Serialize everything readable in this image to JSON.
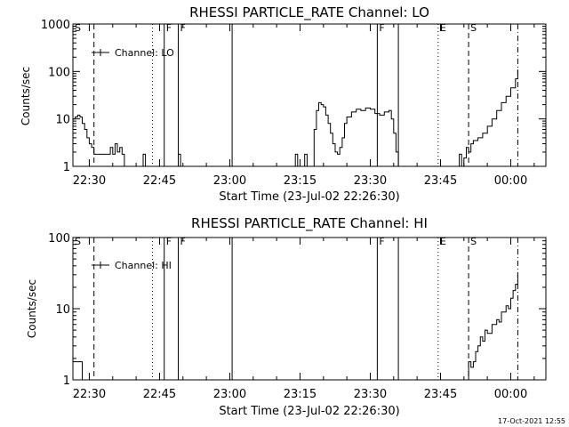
{
  "timestamp": "17-Oct-2021 12:55",
  "colors": {
    "background": "#ffffff",
    "foreground": "#000000"
  },
  "chart_data": [
    {
      "type": "line",
      "title": "RHESSI PARTICLE_RATE Channel: LO",
      "xlabel": "Start Time (23-Jul-02 22:26:30)",
      "ylabel": "Counts/sec",
      "yscale": "log",
      "ylim": [
        1,
        1000
      ],
      "xlim": [
        "22:26:30",
        "00:07:30"
      ],
      "x_ticks": [
        "22:30",
        "22:45",
        "23:00",
        "23:15",
        "23:30",
        "23:45",
        "00:00"
      ],
      "y_ticks": [
        "1",
        "10",
        "100",
        "1000"
      ],
      "legend": {
        "entries": [
          "Channel: LO"
        ],
        "placement": "top-left"
      },
      "grid": false,
      "markers": [
        {
          "label": "S",
          "time": "22:26:30",
          "style": "dash-dot"
        },
        {
          "label": "",
          "time": "22:31:00",
          "style": "dashed"
        },
        {
          "label": "",
          "time": "22:43:30",
          "style": "dotted"
        },
        {
          "label": "F",
          "time": "22:46:00",
          "style": "solid"
        },
        {
          "label": "F",
          "time": "22:49:00",
          "style": "solid"
        },
        {
          "label": "",
          "time": "23:00:30",
          "style": "solid"
        },
        {
          "label": "F",
          "time": "23:31:30",
          "style": "solid"
        },
        {
          "label": "",
          "time": "23:36:00",
          "style": "solid"
        },
        {
          "label": "E",
          "time": "23:44:30",
          "style": "dotted"
        },
        {
          "label": "S",
          "time": "23:51:00",
          "style": "dashed"
        },
        {
          "label": "",
          "time": "00:01:30",
          "style": "dash-dot"
        }
      ],
      "series": [
        {
          "name": "Channel: LO",
          "segments": [
            [
              [
                "22:26:30",
                10
              ],
              [
                "22:27:00",
                11
              ],
              [
                "22:27:30",
                12
              ],
              [
                "22:28:00",
                11
              ],
              [
                "22:28:30",
                8
              ],
              [
                "22:29:00",
                6
              ],
              [
                "22:29:30",
                4
              ],
              [
                "22:30:00",
                3
              ],
              [
                "22:30:30",
                2.5
              ],
              [
                "22:31:00",
                1.8
              ],
              [
                "22:32:00",
                1.8
              ],
              [
                "22:33:00",
                1.8
              ],
              [
                "22:34:00",
                1.8
              ],
              [
                "22:34:30",
                2.5
              ],
              [
                "22:35:00",
                1.8
              ],
              [
                "22:35:30",
                3
              ],
              [
                "22:36:00",
                2
              ],
              [
                "22:36:30",
                2.5
              ],
              [
                "22:37:00",
                1.8
              ],
              [
                "22:37:30",
                1
              ]
            ],
            [
              [
                "22:41:00",
                1
              ],
              [
                "22:41:30",
                1.8
              ],
              [
                "22:42:00",
                1
              ]
            ],
            [
              [
                "22:48:30",
                1
              ],
              [
                "22:49:00",
                1.8
              ],
              [
                "22:49:30",
                1
              ]
            ],
            [
              [
                "23:13:30",
                1
              ],
              [
                "23:14:00",
                1.8
              ],
              [
                "23:14:30",
                1
              ]
            ],
            [
              [
                "23:15:30",
                1
              ],
              [
                "23:16:00",
                1.8
              ],
              [
                "23:16:30",
                1
              ]
            ],
            [
              [
                "23:17:30",
                1
              ],
              [
                "23:18:00",
                6
              ],
              [
                "23:18:30",
                15
              ],
              [
                "23:19:00",
                22
              ],
              [
                "23:19:30",
                20
              ],
              [
                "23:20:00",
                18
              ],
              [
                "23:20:30",
                12
              ],
              [
                "23:21:00",
                8
              ],
              [
                "23:21:30",
                5
              ],
              [
                "23:22:00",
                3
              ],
              [
                "23:22:30",
                2
              ],
              [
                "23:23:00",
                1.8
              ],
              [
                "23:23:30",
                2.5
              ],
              [
                "23:24:00",
                4
              ],
              [
                "23:24:30",
                8
              ],
              [
                "23:25:00",
                11
              ],
              [
                "23:26:00",
                14
              ],
              [
                "23:27:00",
                16
              ],
              [
                "23:28:00",
                15
              ],
              [
                "23:29:00",
                17
              ],
              [
                "23:30:00",
                16
              ],
              [
                "23:31:00",
                13
              ],
              [
                "23:32:00",
                12
              ],
              [
                "23:33:00",
                14
              ],
              [
                "23:34:00",
                15
              ],
              [
                "23:34:30",
                10
              ],
              [
                "23:35:00",
                5
              ],
              [
                "23:35:30",
                2
              ],
              [
                "23:36:00",
                1
              ]
            ],
            [
              [
                "23:48:30",
                1
              ],
              [
                "23:49:00",
                1.8
              ],
              [
                "23:49:30",
                1
              ],
              [
                "23:50:00",
                1.5
              ],
              [
                "23:50:30",
                2.5
              ],
              [
                "23:51:00",
                2
              ],
              [
                "23:51:30",
                3
              ],
              [
                "23:52:00",
                3.5
              ],
              [
                "23:53:00",
                4
              ],
              [
                "23:54:00",
                5
              ],
              [
                "23:55:00",
                7
              ],
              [
                "23:56:00",
                10
              ],
              [
                "23:57:00",
                15
              ],
              [
                "23:58:00",
                22
              ],
              [
                "23:59:00",
                30
              ],
              [
                "00:00:00",
                45
              ],
              [
                "00:01:00",
                70
              ],
              [
                "00:01:30",
                110
              ]
            ]
          ]
        }
      ]
    },
    {
      "type": "line",
      "title": "RHESSI PARTICLE_RATE Channel: HI",
      "xlabel": "Start Time (23-Jul-02 22:26:30)",
      "ylabel": "Counts/sec",
      "yscale": "log",
      "ylim": [
        1,
        100
      ],
      "xlim": [
        "22:26:30",
        "00:07:30"
      ],
      "x_ticks": [
        "22:30",
        "22:45",
        "23:00",
        "23:15",
        "23:30",
        "23:45",
        "00:00"
      ],
      "y_ticks": [
        "1",
        "10",
        "100"
      ],
      "legend": {
        "entries": [
          "Channel: HI"
        ],
        "placement": "top-left"
      },
      "grid": false,
      "markers": [
        {
          "label": "S",
          "time": "22:26:30",
          "style": "dash-dot"
        },
        {
          "label": "",
          "time": "22:31:00",
          "style": "dashed"
        },
        {
          "label": "",
          "time": "22:43:30",
          "style": "dotted"
        },
        {
          "label": "F",
          "time": "22:46:00",
          "style": "solid"
        },
        {
          "label": "F",
          "time": "22:49:00",
          "style": "solid"
        },
        {
          "label": "",
          "time": "23:00:30",
          "style": "solid"
        },
        {
          "label": "F",
          "time": "23:31:30",
          "style": "solid"
        },
        {
          "label": "",
          "time": "23:36:00",
          "style": "solid"
        },
        {
          "label": "E",
          "time": "23:44:30",
          "style": "dotted"
        },
        {
          "label": "S",
          "time": "23:51:00",
          "style": "dashed"
        },
        {
          "label": "",
          "time": "00:01:30",
          "style": "dash-dot"
        }
      ],
      "series": [
        {
          "name": "Channel: HI",
          "segments": [
            [
              [
                "22:26:30",
                1.8
              ],
              [
                "22:28:00",
                1.8
              ],
              [
                "22:28:30",
                1
              ]
            ],
            [
              [
                "23:50:30",
                1
              ],
              [
                "23:51:00",
                1.8
              ],
              [
                "23:51:30",
                1.5
              ],
              [
                "23:52:00",
                1.8
              ],
              [
                "23:52:30",
                2.5
              ],
              [
                "23:53:00",
                3
              ],
              [
                "23:53:30",
                4
              ],
              [
                "23:54:00",
                3.5
              ],
              [
                "23:54:30",
                5
              ],
              [
                "23:55:00",
                4.5
              ],
              [
                "23:56:00",
                6
              ],
              [
                "23:57:00",
                7
              ],
              [
                "23:57:30",
                6.5
              ],
              [
                "23:58:00",
                9
              ],
              [
                "23:59:00",
                11
              ],
              [
                "23:59:30",
                10
              ],
              [
                "00:00:00",
                14
              ],
              [
                "00:00:30",
                18
              ],
              [
                "00:01:00",
                22
              ],
              [
                "00:01:30",
                30
              ]
            ]
          ]
        }
      ]
    }
  ]
}
